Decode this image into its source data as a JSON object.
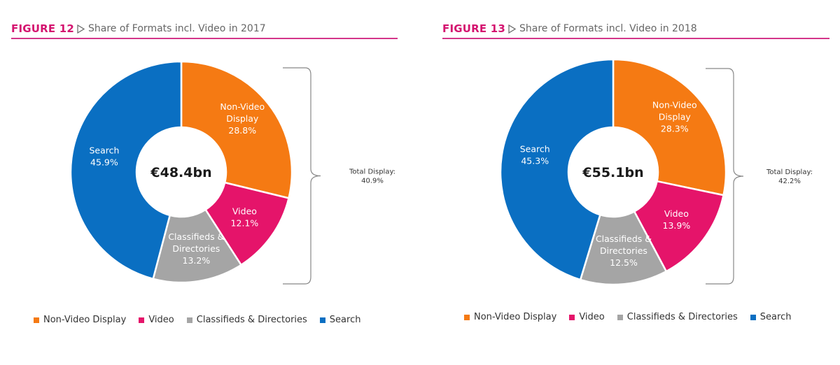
{
  "chart_data": [
    {
      "type": "donut",
      "figure_label": "FIGURE 12",
      "title": "Share of Formats incl. Video in 2017",
      "center_label": "€48.4bn",
      "slices": [
        {
          "name": "Non-Video Display",
          "label_lines": [
            "Non-Video",
            "Display"
          ],
          "value": 28.8,
          "value_label": "28.8%",
          "color": "#f57a13"
        },
        {
          "name": "Video",
          "label_lines": [
            "Video"
          ],
          "value": 12.1,
          "value_label": "12.1%",
          "color": "#e5146a"
        },
        {
          "name": "Classifieds & Directories",
          "label_lines": [
            "Classifieds &",
            "Directories"
          ],
          "value": 13.2,
          "value_label": "13.2%",
          "color": "#a5a5a5"
        },
        {
          "name": "Search",
          "label_lines": [
            "Search"
          ],
          "value": 45.9,
          "value_label": "45.9%",
          "color": "#0a6fc2"
        }
      ],
      "bracket": {
        "label": "Total Display:",
        "value": "40.9%"
      },
      "legend": [
        "Non-Video Display",
        "Video",
        "Classifieds & Directories",
        "Search"
      ]
    },
    {
      "type": "donut",
      "figure_label": "FIGURE 13",
      "title": "Share of Formats incl. Video in 2018",
      "center_label": "€55.1bn",
      "slices": [
        {
          "name": "Non-Video Display",
          "label_lines": [
            "Non-Video",
            "Display"
          ],
          "value": 28.3,
          "value_label": "28.3%",
          "color": "#f57a13"
        },
        {
          "name": "Video",
          "label_lines": [
            "Video"
          ],
          "value": 13.9,
          "value_label": "13.9%",
          "color": "#e5146a"
        },
        {
          "name": "Classifieds & Directories",
          "label_lines": [
            "Classifieds &",
            "Directories"
          ],
          "value": 12.5,
          "value_label": "12.5%",
          "color": "#a5a5a5"
        },
        {
          "name": "Search",
          "label_lines": [
            "Search"
          ],
          "value": 45.3,
          "value_label": "45.3%",
          "color": "#0a6fc2"
        }
      ],
      "bracket": {
        "label": "Total Display:",
        "value": "42.2%"
      },
      "legend": [
        "Non-Video Display",
        "Video",
        "Classifieds & Directories",
        "Search"
      ]
    }
  ]
}
